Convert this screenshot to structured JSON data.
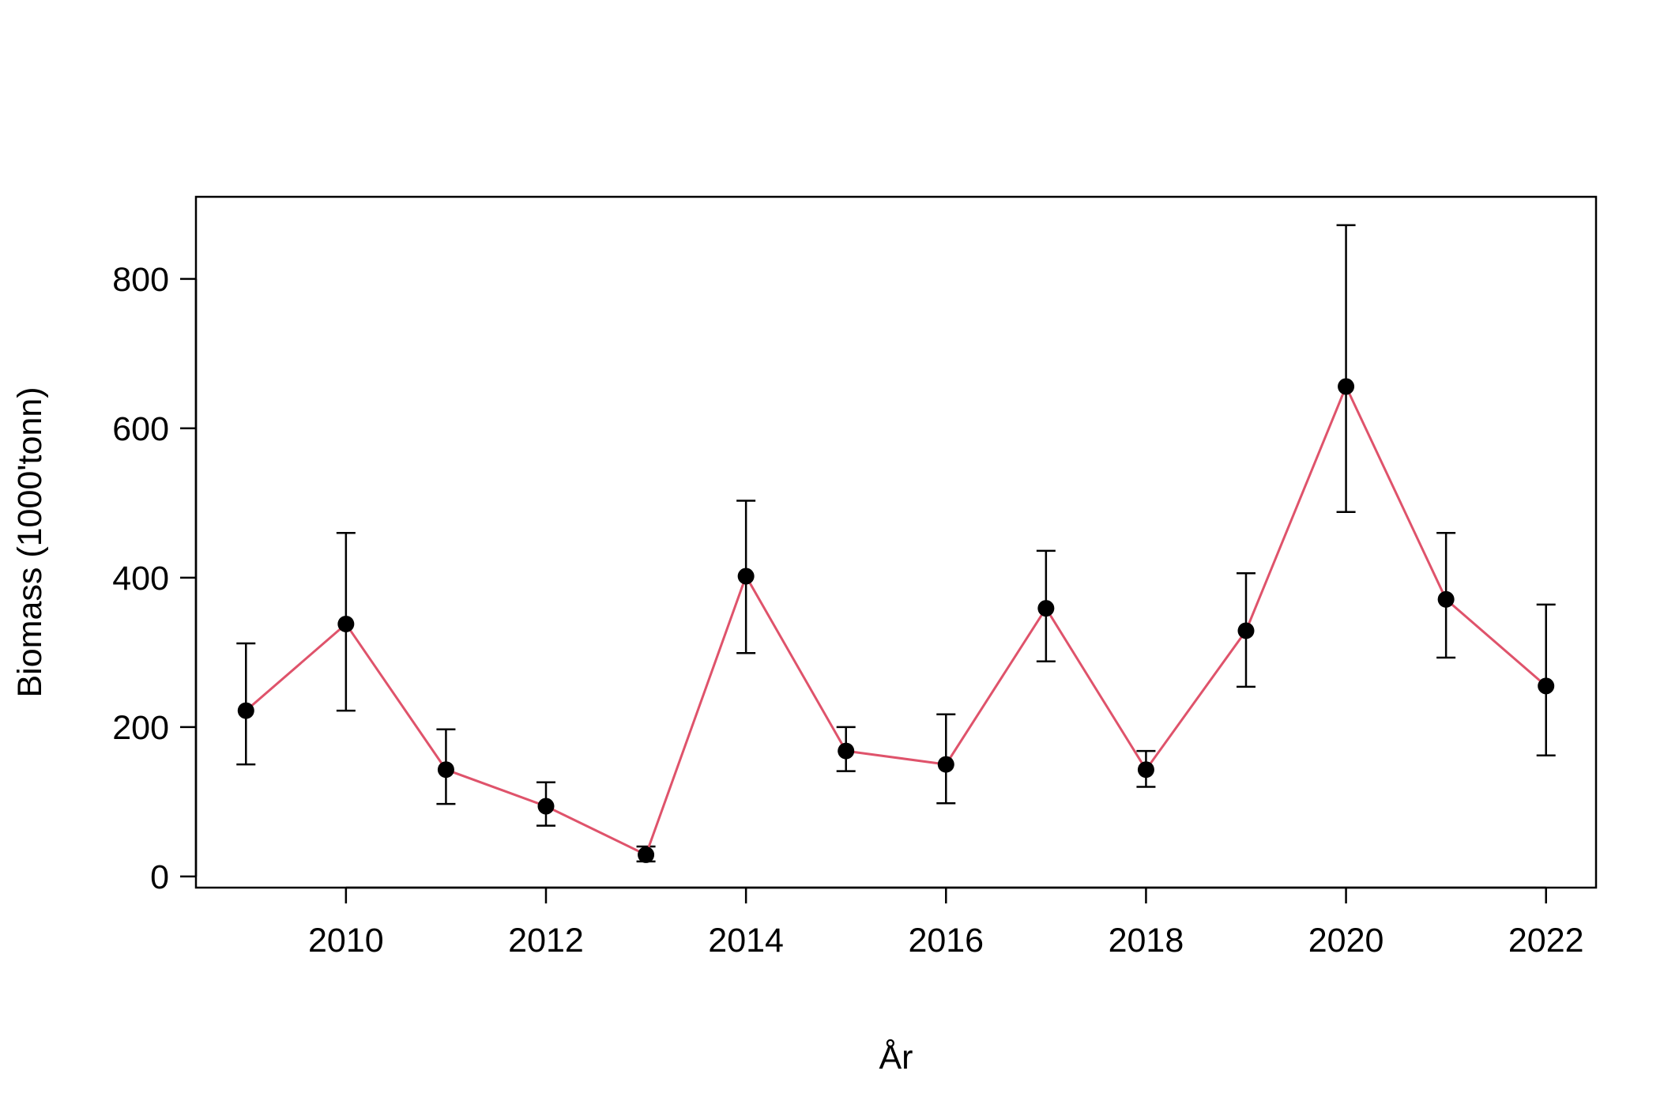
{
  "chart_data": {
    "type": "line",
    "title": "",
    "xlabel": "År",
    "ylabel": "Biomass (1000'tonn)",
    "xlim": [
      2008.5,
      2022.5
    ],
    "ylim": [
      -15,
      910
    ],
    "x_ticks": [
      2010,
      2012,
      2014,
      2016,
      2018,
      2020,
      2022
    ],
    "y_ticks": [
      0,
      200,
      400,
      600,
      800
    ],
    "grid": false,
    "legend": "none",
    "series": [
      {
        "x": [
          2009,
          2010,
          2011,
          2012,
          2013,
          2014,
          2015,
          2016,
          2017,
          2018,
          2019,
          2020,
          2021,
          2022
        ],
        "values": [
          222,
          338,
          143,
          94,
          29,
          402,
          168,
          150,
          359,
          143,
          329,
          656,
          371,
          255
        ],
        "lower": [
          150,
          222,
          97,
          68,
          20,
          299,
          141,
          98,
          288,
          120,
          254,
          488,
          293,
          162
        ],
        "upper": [
          312,
          460,
          197,
          126,
          40,
          503,
          200,
          217,
          436,
          168,
          406,
          872,
          460,
          364
        ]
      }
    ],
    "colors": {
      "line": "#DF536B",
      "points": "#000000",
      "errorbars": "#000000",
      "axes": "#000000"
    }
  }
}
